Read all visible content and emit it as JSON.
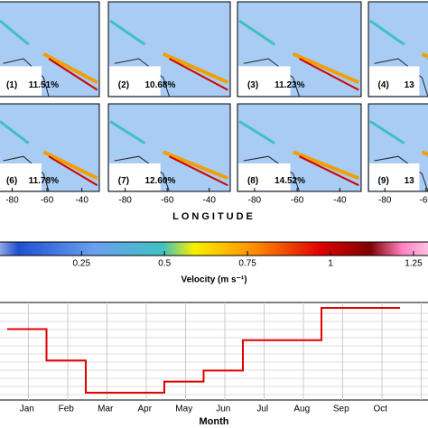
{
  "chart_data": [
    {
      "type": "map-panels",
      "panels": [
        {
          "label": "(1)",
          "percent": "11.51%"
        },
        {
          "label": "(2)",
          "percent": "10.68%"
        },
        {
          "label": "(3)",
          "percent": "11.23%"
        },
        {
          "label": "(4)",
          "percent": "13"
        },
        {
          "label": "(6)",
          "percent": "11.78%"
        },
        {
          "label": "(7)",
          "percent": "12.60%"
        },
        {
          "label": "(8)",
          "percent": "14.52%"
        },
        {
          "label": "(9)",
          "percent": "13"
        }
      ],
      "xlabel": "LONGITUDE",
      "xlim": [
        -88,
        -30
      ],
      "xticks": [
        -80,
        -60,
        -40
      ]
    },
    {
      "type": "colorbar",
      "label": "Velocity (m s⁻¹)",
      "lim": [
        -0.05,
        1.31
      ],
      "ticks": [
        0.25,
        0.5,
        0.75,
        1,
        1.25
      ]
    },
    {
      "type": "step",
      "xlabel": "Month",
      "categories": [
        "Jan",
        "Feb",
        "Mar",
        "Apr",
        "May",
        "Jun",
        "Jul",
        "Aug",
        "Sep",
        "Oct"
      ],
      "values": [
        7.4,
        4.0,
        0.5,
        0.5,
        1.7,
        2.9,
        6.2,
        6.2,
        9.7,
        9.7
      ],
      "color": "#e00000",
      "ylim": [
        0,
        10
      ],
      "grid": true
    }
  ]
}
